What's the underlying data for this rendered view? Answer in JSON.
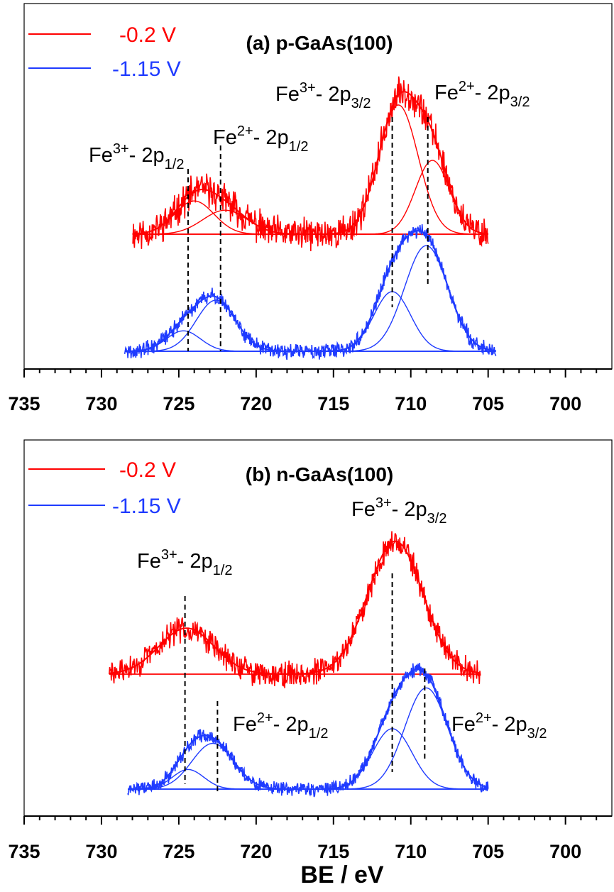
{
  "xlabel": "BE / eV",
  "colors": {
    "red": "#ff0000",
    "blue": "#1f3bff",
    "frame": "#000000"
  },
  "chart_data": [
    {
      "type": "line",
      "title": "(a) p-GaAs(100)",
      "x_axis": {
        "label": "",
        "range": [
          735,
          697
        ],
        "reversed": true,
        "ticks": [
          "735",
          "730",
          "725",
          "720",
          "715",
          "710",
          "705",
          "700"
        ]
      },
      "legend": {
        "placement": "top-left",
        "entries": [
          {
            "name": "-0.2 V",
            "color": "#ff0000"
          },
          {
            "name": "-1.15 V",
            "color": "#1f3bff"
          }
        ]
      },
      "series": [
        {
          "name": "-0.2 V",
          "color": "#ff0000",
          "x_range": [
            728,
            705
          ],
          "baseline": 0.0,
          "noise": 0.07,
          "components": [
            {
              "label": "Fe3+ 2p3/2",
              "center": 710.8,
              "height": 0.7,
              "fwhm": 3.0
            },
            {
              "label": "Fe2+ 2p3/2",
              "center": 708.6,
              "height": 0.4,
              "fwhm": 2.6
            },
            {
              "label": "Fe3+ 2p1/2",
              "center": 724.0,
              "height": 0.18,
              "fwhm": 3.0
            },
            {
              "label": "Fe2+ 2p1/2",
              "center": 722.0,
              "height": 0.13,
              "fwhm": 3.4
            }
          ]
        },
        {
          "name": "-1.15 V",
          "color": "#1f3bff",
          "x_range": [
            728.5,
            704.5
          ],
          "baseline": 0.0,
          "noise": 0.035,
          "components": [
            {
              "label": "Fe2+ 2p3/2",
              "center": 709.0,
              "height": 0.62,
              "fwhm": 3.3
            },
            {
              "label": "Fe3+ 2p3/2",
              "center": 711.2,
              "height": 0.35,
              "fwhm": 2.8
            },
            {
              "label": "Fe3+ 2p1/2",
              "center": 724.7,
              "height": 0.12,
              "fwhm": 2.6
            },
            {
              "label": "Fe2+ 2p1/2",
              "center": 722.6,
              "height": 0.3,
              "fwhm": 3.0
            }
          ]
        }
      ],
      "annotations": [
        {
          "ion": "Fe",
          "charge": "3+",
          "orbital": "- 2p",
          "sub": "1/2",
          "x": 724.4
        },
        {
          "ion": "Fe",
          "charge": "2+",
          "orbital": "- 2p",
          "sub": "1/2",
          "x": 722.3
        },
        {
          "ion": "Fe",
          "charge": "3+",
          "orbital": "- 2p",
          "sub": "3/2",
          "x": 711.2
        },
        {
          "ion": "Fe",
          "charge": "2+",
          "orbital": "- 2p",
          "sub": "3/2",
          "x": 708.9
        }
      ]
    },
    {
      "type": "line",
      "title": "(b) n-GaAs(100)",
      "x_axis": {
        "label": "BE / eV",
        "range": [
          735,
          697
        ],
        "reversed": true,
        "ticks": [
          "735",
          "730",
          "725",
          "720",
          "715",
          "710",
          "705",
          "700"
        ]
      },
      "legend": {
        "placement": "top-left",
        "entries": [
          {
            "name": "-0.2 V",
            "color": "#ff0000"
          },
          {
            "name": "-1.15 V",
            "color": "#1f3bff"
          }
        ]
      },
      "series": [
        {
          "name": "-0.2 V",
          "color": "#ff0000",
          "x_range": [
            729.5,
            705.5
          ],
          "baseline": 0.0,
          "noise": 0.06,
          "components": [
            {
              "label": "Fe3+ 2p3/2",
              "center": 711.0,
              "height": 0.78,
              "fwhm": 4.2
            },
            {
              "label": "Fe3+ 2p1/2",
              "center": 724.5,
              "height": 0.27,
              "fwhm": 4.2
            }
          ]
        },
        {
          "name": "-1.15 V",
          "color": "#1f3bff",
          "x_range": [
            728.3,
            705.0
          ],
          "baseline": 0.0,
          "noise": 0.035,
          "components": [
            {
              "label": "Fe2+ 2p3/2",
              "center": 709.0,
              "height": 0.62,
              "fwhm": 3.3
            },
            {
              "label": "Fe3+ 2p3/2",
              "center": 711.2,
              "height": 0.37,
              "fwhm": 3.0
            },
            {
              "label": "Fe3+ 2p1/2",
              "center": 724.4,
              "height": 0.12,
              "fwhm": 2.4
            },
            {
              "label": "Fe2+ 2p1/2",
              "center": 722.8,
              "height": 0.28,
              "fwhm": 3.2
            }
          ]
        }
      ],
      "annotations": [
        {
          "ion": "Fe",
          "charge": "3+",
          "orbital": "- 2p",
          "sub": "1/2",
          "x": 724.6
        },
        {
          "ion": "Fe",
          "charge": "2+",
          "orbital": "- 2p",
          "sub": "1/2",
          "x": 722.5
        },
        {
          "ion": "Fe",
          "charge": "3+",
          "orbital": "- 2p",
          "sub": "3/2",
          "x": 711.2
        },
        {
          "ion": "Fe",
          "charge": "2+",
          "orbital": "- 2p",
          "sub": "3/2",
          "x": 709.1
        }
      ]
    }
  ]
}
